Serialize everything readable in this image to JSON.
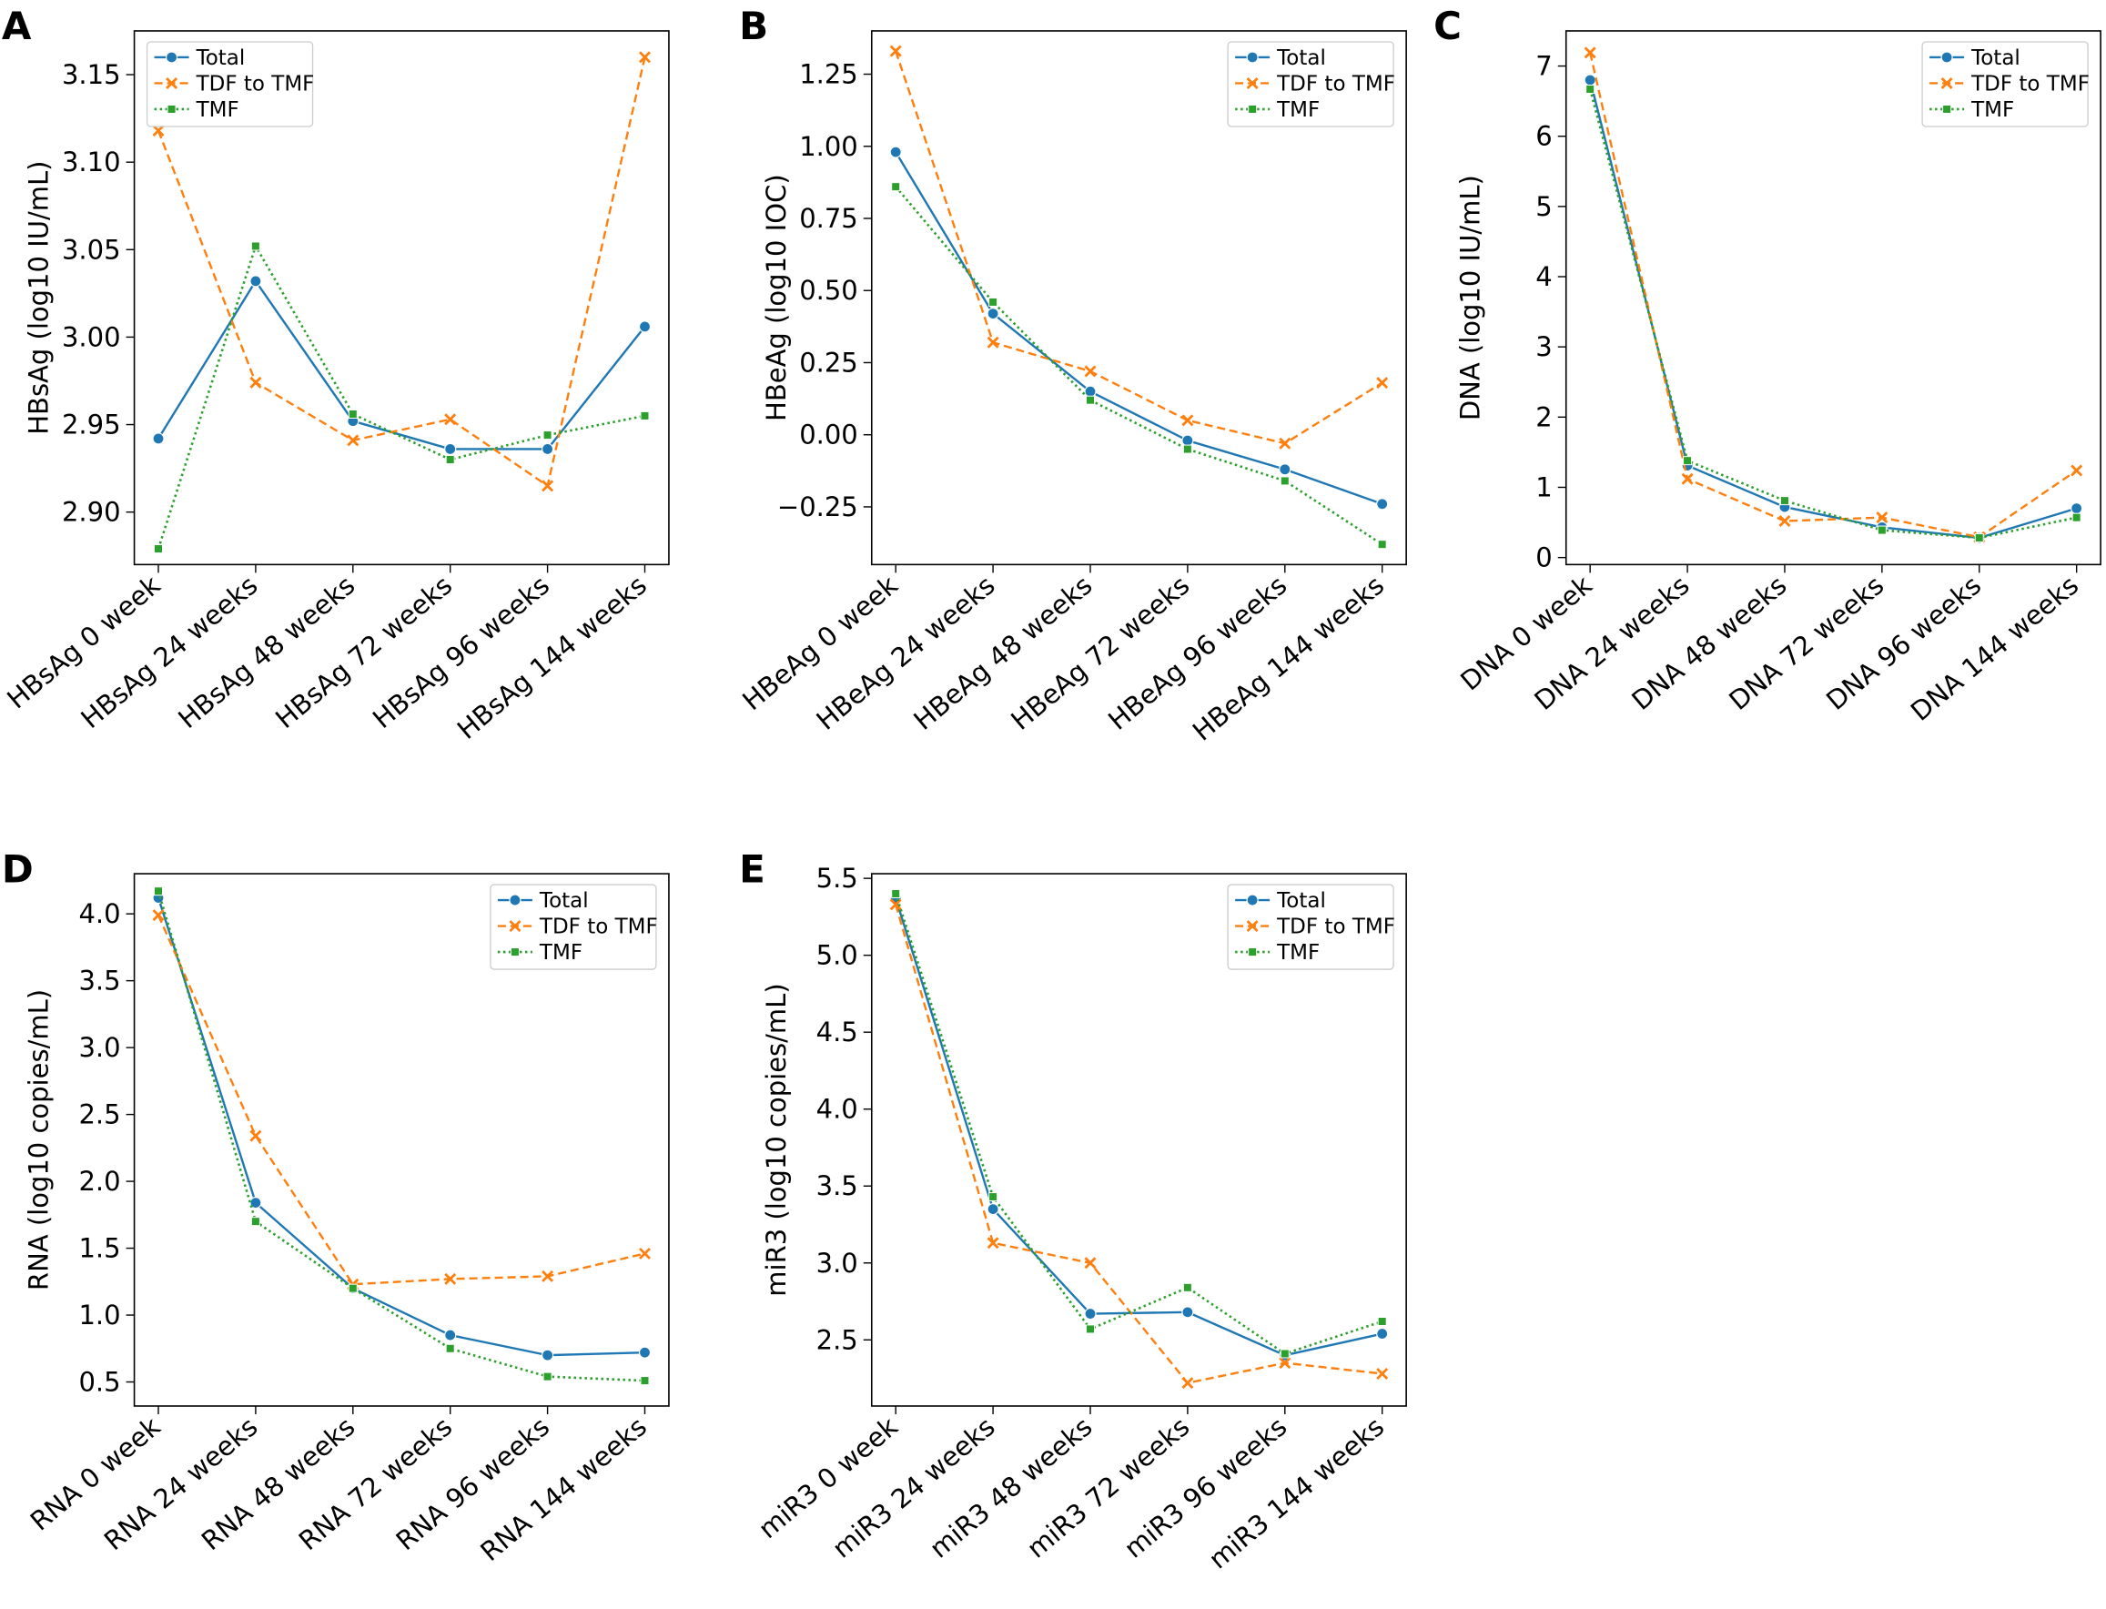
{
  "figure": {
    "colors": {
      "Total": "#1f77b4",
      "TDF to TMF": "#ff7f0e",
      "TMF": "#2ca02c"
    },
    "legend": [
      "Total",
      "TDF to TMF",
      "TMF"
    ]
  },
  "chart_data": [
    {
      "panel": "A",
      "type": "line",
      "ylabel": "HBsAg (log10 IU/mL)",
      "categories": [
        "HBsAg 0 week",
        "HBsAg 24 weeks",
        "HBsAg 48 weeks",
        "HBsAg 72 weeks",
        "HBsAg 96 weeks",
        "HBsAg 144 weeks"
      ],
      "ylim": [
        2.87,
        3.175
      ],
      "yticks": [
        2.9,
        2.95,
        3.0,
        3.05,
        3.1,
        3.15
      ],
      "ytick_labels": [
        "2.90",
        "2.95",
        "3.00",
        "3.05",
        "3.10",
        "3.15"
      ],
      "legend_position": "top-left",
      "series": [
        {
          "name": "Total",
          "values": [
            2.942,
            3.032,
            2.952,
            2.936,
            2.936,
            3.006
          ]
        },
        {
          "name": "TDF to TMF",
          "values": [
            3.118,
            2.974,
            2.941,
            2.953,
            2.915,
            3.16
          ]
        },
        {
          "name": "TMF",
          "values": [
            2.879,
            3.052,
            2.956,
            2.93,
            2.944,
            2.955
          ]
        }
      ]
    },
    {
      "panel": "B",
      "type": "line",
      "ylabel": "HBeAg (log10 IOC)",
      "categories": [
        "HBeAg 0 week",
        "HBeAg 24 weeks",
        "HBeAg 48 weeks",
        "HBeAg 72 weeks",
        "HBeAg 96 weeks",
        "HBeAg 144 weeks"
      ],
      "ylim": [
        -0.45,
        1.4
      ],
      "yticks": [
        -0.25,
        0.0,
        0.25,
        0.5,
        0.75,
        1.0,
        1.25
      ],
      "ytick_labels": [
        "−0.25",
        "0.00",
        "0.25",
        "0.50",
        "0.75",
        "1.00",
        "1.25"
      ],
      "legend_position": "top-right",
      "series": [
        {
          "name": "Total",
          "values": [
            0.98,
            0.42,
            0.15,
            -0.02,
            -0.12,
            -0.24
          ]
        },
        {
          "name": "TDF to TMF",
          "values": [
            1.33,
            0.32,
            0.22,
            0.05,
            -0.03,
            0.18
          ]
        },
        {
          "name": "TMF",
          "values": [
            0.86,
            0.46,
            0.12,
            -0.05,
            -0.16,
            -0.38
          ]
        }
      ]
    },
    {
      "panel": "C",
      "type": "line",
      "ylabel": "DNA (log10 IU/mL)",
      "categories": [
        "DNA 0 week",
        "DNA 24 weeks",
        "DNA 48 weeks",
        "DNA 72 weeks",
        "DNA 96 weeks",
        "DNA 144 weeks"
      ],
      "ylim": [
        -0.1,
        7.5
      ],
      "yticks": [
        0,
        1,
        2,
        3,
        4,
        5,
        6,
        7
      ],
      "ytick_labels": [
        "0",
        "1",
        "2",
        "3",
        "4",
        "5",
        "6",
        "7"
      ],
      "legend_position": "top-right",
      "series": [
        {
          "name": "Total",
          "values": [
            6.8,
            1.31,
            0.72,
            0.43,
            0.28,
            0.7
          ]
        },
        {
          "name": "TDF to TMF",
          "values": [
            7.19,
            1.12,
            0.52,
            0.57,
            0.29,
            1.24
          ]
        },
        {
          "name": "TMF",
          "values": [
            6.67,
            1.38,
            0.81,
            0.39,
            0.28,
            0.57
          ]
        }
      ]
    },
    {
      "panel": "D",
      "type": "line",
      "ylabel": "RNA (log10 copies/mL)",
      "categories": [
        "RNA 0 week",
        "RNA 24 weeks",
        "RNA 48 weeks",
        "RNA 72 weeks",
        "RNA 96 weeks",
        "RNA 144 weeks"
      ],
      "ylim": [
        0.32,
        4.3
      ],
      "yticks": [
        0.5,
        1.0,
        1.5,
        2.0,
        2.5,
        3.0,
        3.5,
        4.0
      ],
      "ytick_labels": [
        "0.5",
        "1.0",
        "1.5",
        "2.0",
        "2.5",
        "3.0",
        "3.5",
        "4.0"
      ],
      "legend_position": "top-right",
      "series": [
        {
          "name": "Total",
          "values": [
            4.12,
            1.84,
            1.2,
            0.85,
            0.7,
            0.72
          ]
        },
        {
          "name": "TDF to TMF",
          "values": [
            3.99,
            2.34,
            1.23,
            1.27,
            1.29,
            1.46
          ]
        },
        {
          "name": "TMF",
          "values": [
            4.17,
            1.7,
            1.2,
            0.75,
            0.54,
            0.51
          ]
        }
      ]
    },
    {
      "panel": "E",
      "type": "line",
      "ylabel": "miR3 (log10 copies/mL)",
      "categories": [
        "miR3 0 week",
        "miR3 24 weeks",
        "miR3 48 weeks",
        "miR3 72 weeks",
        "miR3 96 weeks",
        "miR3 144 weeks"
      ],
      "ylim": [
        2.07,
        5.53
      ],
      "yticks": [
        2.5,
        3.0,
        3.5,
        4.0,
        4.5,
        5.0,
        5.5
      ],
      "ytick_labels": [
        "2.5",
        "3.0",
        "3.5",
        "4.0",
        "4.5",
        "5.0",
        "5.5"
      ],
      "legend_position": "top-right",
      "series": [
        {
          "name": "Total",
          "values": [
            5.37,
            3.35,
            2.67,
            2.68,
            2.4,
            2.54
          ]
        },
        {
          "name": "TDF to TMF",
          "values": [
            5.33,
            3.13,
            3.0,
            2.22,
            2.35,
            2.28
          ]
        },
        {
          "name": "TMF",
          "values": [
            5.4,
            3.43,
            2.57,
            2.84,
            2.41,
            2.62
          ]
        }
      ]
    }
  ]
}
